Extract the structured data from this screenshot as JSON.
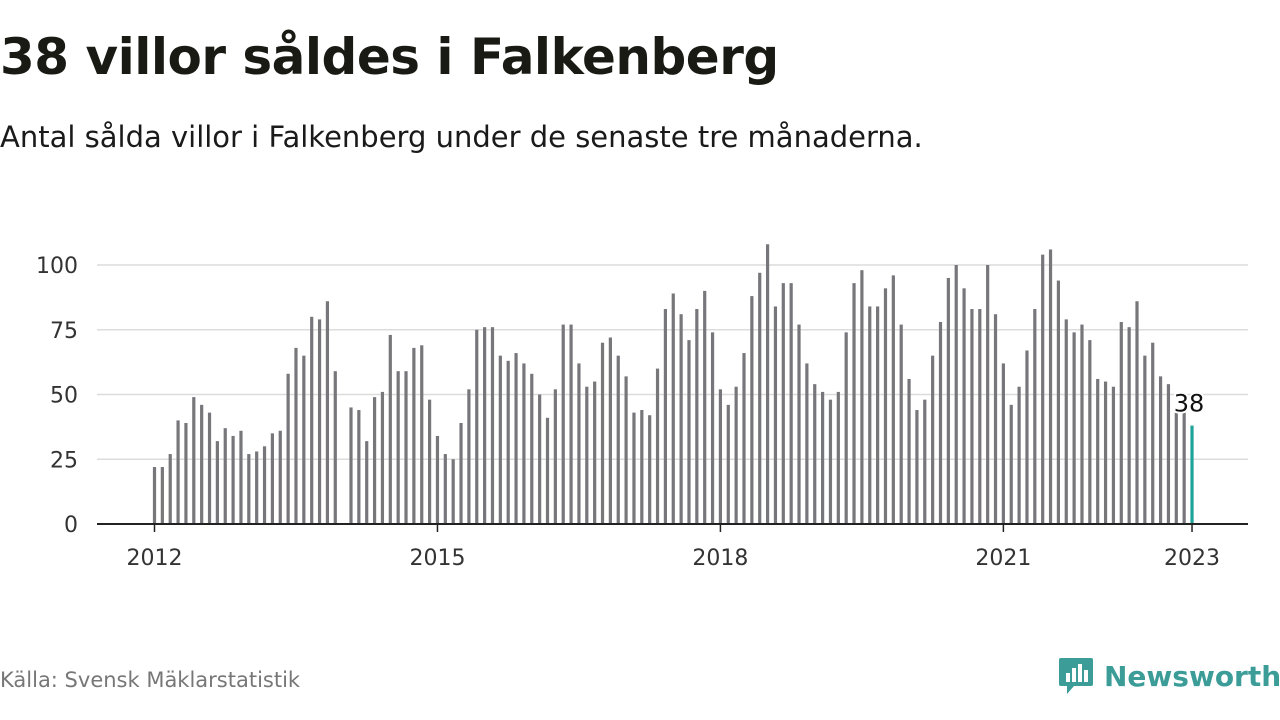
{
  "header": {
    "title": "38 villor såldes i Falkenberg",
    "subtitle": "Antal sålda villor i Falkenberg under de senaste tre månaderna."
  },
  "footer": {
    "source": "Källa: Svensk Mäklarstatistik",
    "brand": "Newsworthy"
  },
  "colors": {
    "bar": "#77767b",
    "highlight": "#1ea39b",
    "grid": "#dcdcdc",
    "axis": "#222222",
    "brand": "#3b9c98"
  },
  "icons": {
    "brand_logo": "newsworthy-logo-icon"
  },
  "chart_data": {
    "type": "bar",
    "title": "38 villor såldes i Falkenberg",
    "subtitle": "Antal sålda villor i Falkenberg under de senaste tre månaderna.",
    "xlabel": "",
    "ylabel": "",
    "ylim": [
      0,
      110
    ],
    "yticks": [
      0,
      25,
      50,
      75,
      100
    ],
    "xtick_labels": [
      {
        "label": "2012",
        "month_index": 0
      },
      {
        "label": "2015",
        "month_index": 36
      },
      {
        "label": "2018",
        "month_index": 72
      },
      {
        "label": "2021",
        "month_index": 108
      },
      {
        "label": "2023",
        "month_index": 132
      }
    ],
    "grid": true,
    "x_start": "2012-01",
    "x_end": "2023-01",
    "highlight_label": "38",
    "series": [
      {
        "values": [
          22,
          22,
          27,
          40,
          39,
          49,
          46,
          43,
          32,
          37,
          34,
          36,
          27,
          28,
          30,
          35,
          36,
          58,
          68,
          65,
          80,
          79,
          86,
          59,
          null,
          45,
          44,
          32,
          49,
          51,
          73,
          59,
          59,
          68,
          69,
          48,
          34,
          27,
          25,
          39,
          52,
          75,
          76,
          76,
          65,
          63,
          66,
          62,
          58,
          50,
          41,
          52,
          77,
          77,
          62,
          53,
          55,
          70,
          72,
          65,
          57,
          43,
          44,
          42,
          60,
          83,
          89,
          81,
          71,
          83,
          90,
          74,
          52,
          46,
          53,
          66,
          88,
          97,
          108,
          84,
          93,
          93,
          77,
          62,
          54,
          51,
          48,
          51,
          74,
          93,
          98,
          84,
          84,
          91,
          96,
          77,
          56,
          44,
          48,
          65,
          78,
          95,
          100,
          91,
          83,
          83,
          100,
          81,
          62,
          46,
          53,
          67,
          83,
          104,
          106,
          94,
          79,
          74,
          77,
          71,
          56,
          55,
          53,
          78,
          76,
          86,
          65,
          70,
          57,
          54,
          43,
          43,
          38
        ]
      }
    ]
  }
}
